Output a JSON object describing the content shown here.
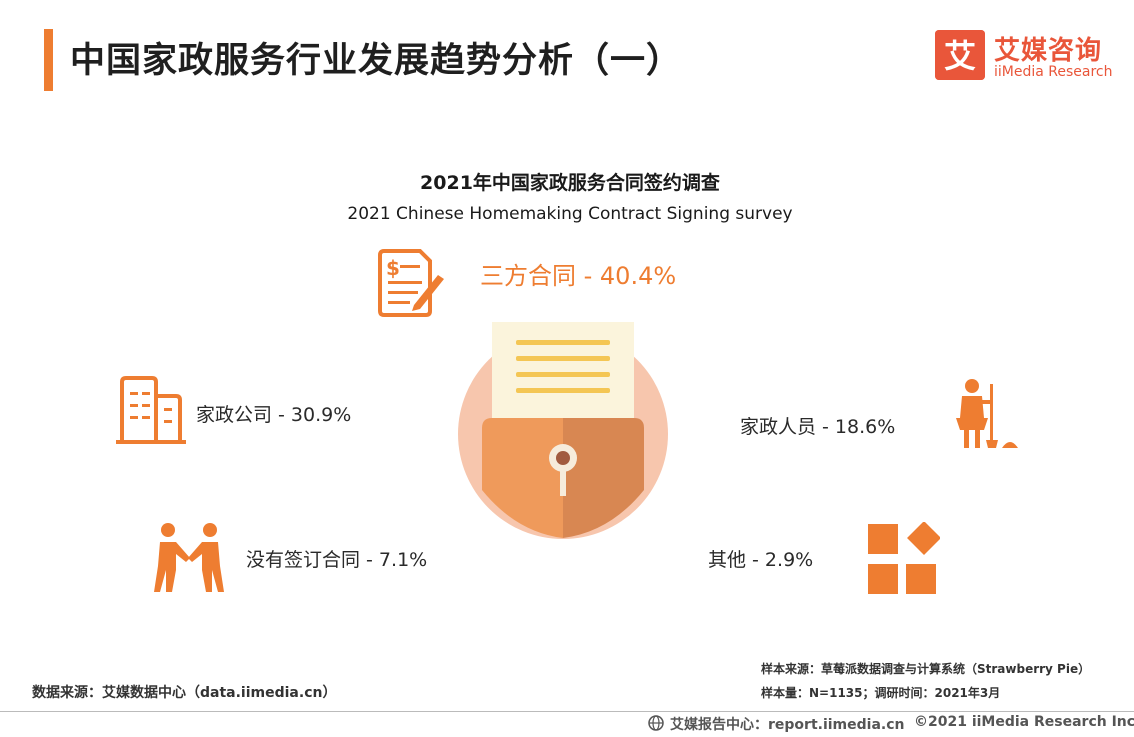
{
  "header": {
    "title": "中国家政服务行业发展趋势分析（一）",
    "logo_glyph": "艾",
    "logo_cn": "艾媒咨询",
    "logo_en": "iiMedia Research",
    "accent_color": "#ee7d31",
    "brand_color": "#e9563a"
  },
  "chart": {
    "title": "2021年中国家政服务合同签约调查",
    "subtitle": "2021 Chinese Homemaking Contract Signing survey"
  },
  "chart_data": {
    "type": "table",
    "title": "2021年中国家政服务合同签约调查",
    "subtitle": "2021 Chinese Homemaking Contract Signing survey",
    "categories": [
      "三方合同",
      "家政公司",
      "家政人员",
      "没有签订合同",
      "其他"
    ],
    "values": [
      40.4,
      30.9,
      18.6,
      7.1,
      2.9
    ],
    "unit": "%"
  },
  "items": [
    {
      "label": "三方合同 - 40.4%",
      "icon": "contract-document-icon"
    },
    {
      "label": "家政公司 - 30.9%",
      "icon": "office-building-icon"
    },
    {
      "label": "家政人员 - 18.6%",
      "icon": "housekeeper-icon"
    },
    {
      "label": "没有签订合同 - 7.1%",
      "icon": "handshake-icon"
    },
    {
      "label": "其他 - 2.9%",
      "icon": "shapes-icon"
    }
  ],
  "footer": {
    "source": "数据来源：艾媒数据中心（data.iimedia.cn）",
    "sample_source": "样本来源：草莓派数据调查与计算系统（Strawberry Pie）",
    "sample_size": "样本量：N=1135；调研时间：2021年3月",
    "report_center": "艾媒报告中心：report.iimedia.cn",
    "copyright": "©2021  iiMedia Research  Inc"
  }
}
